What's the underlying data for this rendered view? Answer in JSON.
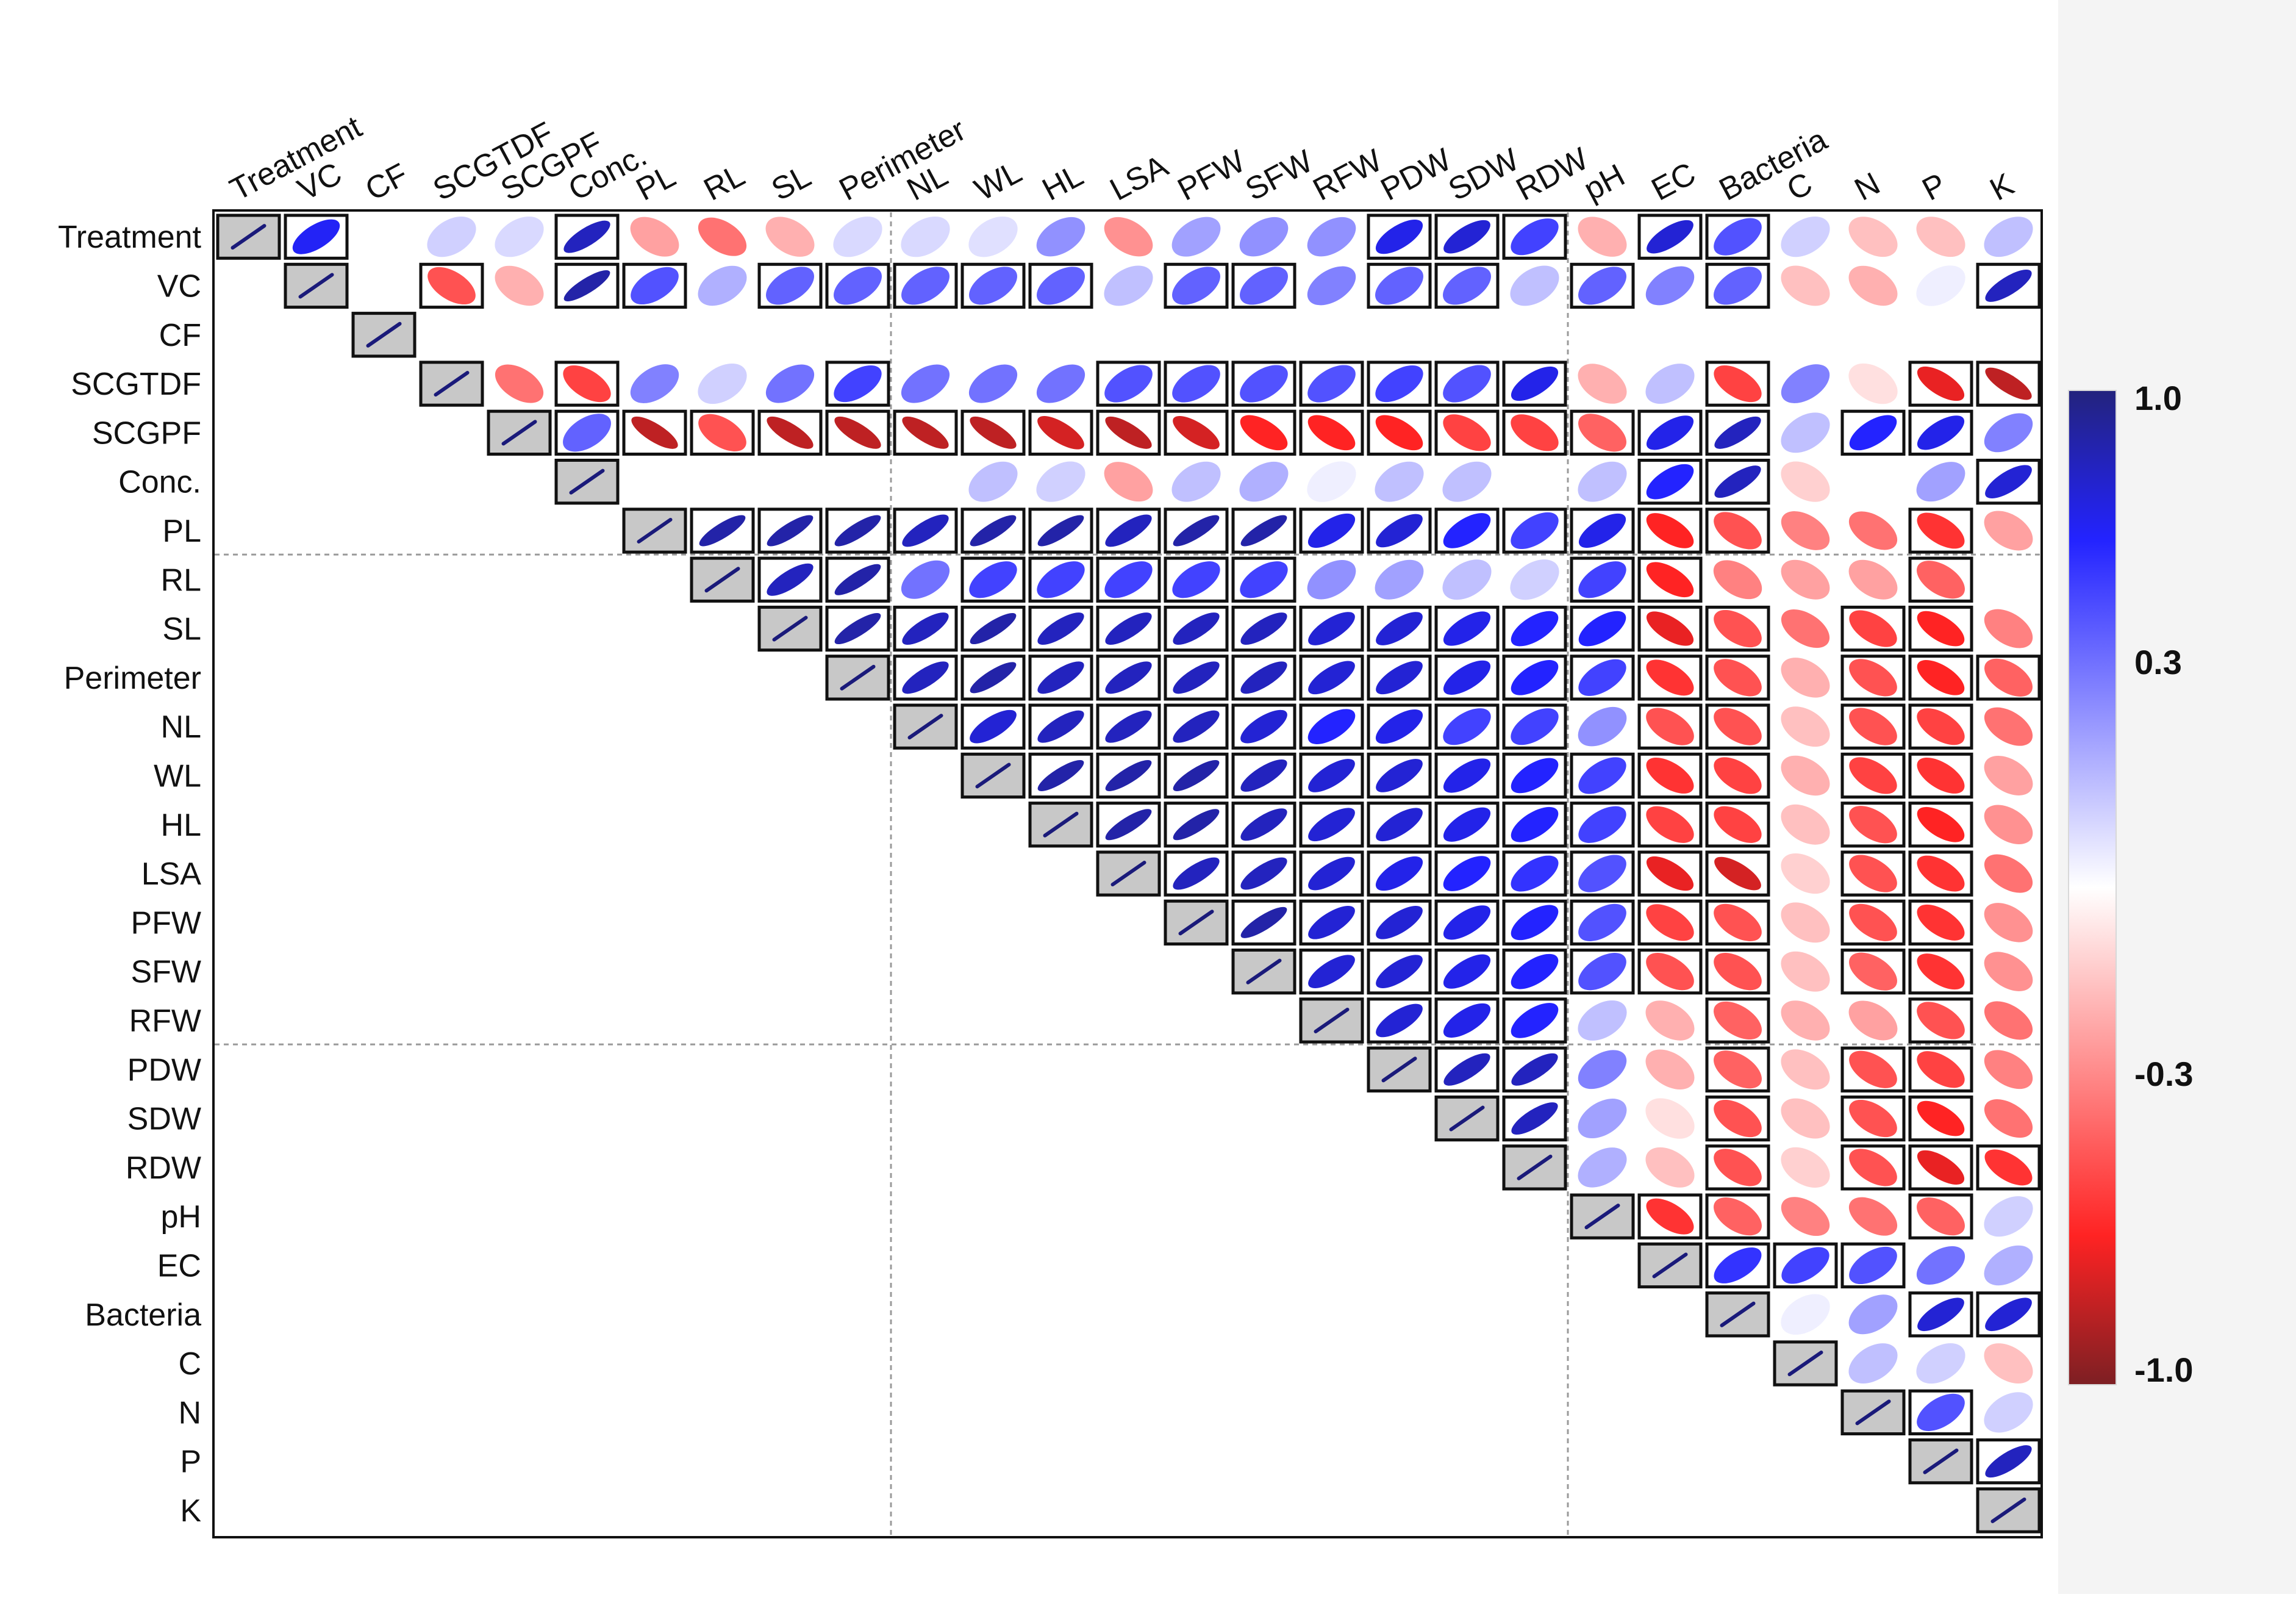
{
  "chart_data": {
    "type": "heatmap",
    "subtype": "correlation-matrix-upper-triangle-ellipses",
    "title": "",
    "variables": [
      "Treatment",
      "VC",
      "CF",
      "SCGTDF",
      "SCGPF",
      "Conc.",
      "PL",
      "RL",
      "SL",
      "Perimeter",
      "NL",
      "WL",
      "HL",
      "LSA",
      "PFW",
      "SFW",
      "RFW",
      "PDW",
      "SDW",
      "RDW",
      "pH",
      "EC",
      "Bacteria",
      "C",
      "N",
      "P",
      "K"
    ],
    "colorbar": {
      "range": [
        -1.0,
        1.0
      ],
      "ticks": [
        {
          "value": 1.0,
          "label": "1.0"
        },
        {
          "value": 0.3,
          "label": "0.3"
        },
        {
          "value": -0.3,
          "label": "-0.3"
        },
        {
          "value": -1.0,
          "label": "-1.0"
        }
      ],
      "colors": {
        "high": "#23237d",
        "mid_high": "#2323ff",
        "zero": "#ffffff",
        "mid_low": "#ff2323",
        "low": "#7d1f23"
      }
    },
    "significance": "black square outline marks significant correlations",
    "grid_lines_dashed": "between groups: after Conc./PL row, after RFW row; columns after Perimeter, after RDW",
    "correlations": [
      [
        1,
        0.72,
        0,
        0.15,
        0.12,
        0.85,
        -0.3,
        -0.45,
        -0.25,
        0.12,
        0.12,
        0.1,
        0.35,
        -0.35,
        0.3,
        0.35,
        0.35,
        0.75,
        0.8,
        0.6,
        -0.25,
        0.8,
        0.55,
        0.15,
        -0.2,
        -0.2,
        0.2
      ],
      [
        null,
        1,
        0,
        -0.55,
        -0.25,
        0.9,
        0.55,
        0.25,
        0.5,
        0.5,
        0.5,
        0.5,
        0.5,
        0.2,
        0.5,
        0.5,
        0.4,
        0.5,
        0.5,
        0.2,
        0.5,
        0.4,
        0.5,
        -0.2,
        -0.25,
        0.05,
        0.85
      ],
      [
        null,
        null,
        1,
        0,
        0,
        0,
        0,
        0,
        0,
        0,
        0,
        0,
        0,
        0,
        0,
        0,
        0,
        0,
        0,
        0,
        0,
        0,
        0,
        0,
        0,
        0,
        0
      ],
      [
        null,
        null,
        null,
        1,
        -0.45,
        -0.6,
        0.4,
        0.15,
        0.45,
        0.6,
        0.45,
        0.45,
        0.45,
        0.55,
        0.55,
        0.55,
        0.55,
        0.6,
        0.55,
        0.75,
        -0.25,
        0.2,
        -0.6,
        0.4,
        -0.1,
        -0.75,
        -0.85
      ],
      [
        null,
        null,
        null,
        null,
        1,
        0.5,
        -0.85,
        -0.55,
        -0.85,
        -0.85,
        -0.85,
        -0.85,
        -0.8,
        -0.85,
        -0.8,
        -0.7,
        -0.7,
        -0.7,
        -0.6,
        -0.6,
        -0.5,
        0.75,
        0.85,
        0.2,
        0.7,
        0.75,
        0.4
      ],
      [
        null,
        null,
        null,
        null,
        null,
        1,
        0,
        0,
        0,
        0,
        0,
        0.2,
        0.15,
        -0.3,
        0.2,
        0.25,
        0.05,
        0.2,
        0.2,
        0,
        0.2,
        0.7,
        0.85,
        -0.15,
        0,
        0.3,
        0.8
      ],
      [
        null,
        null,
        null,
        null,
        null,
        null,
        1,
        0.9,
        0.9,
        0.9,
        0.85,
        0.9,
        0.9,
        0.85,
        0.9,
        0.9,
        0.75,
        0.8,
        0.7,
        0.6,
        0.75,
        -0.7,
        -0.55,
        -0.4,
        -0.45,
        -0.65,
        -0.3
      ],
      [
        null,
        null,
        null,
        null,
        null,
        null,
        null,
        1,
        0.85,
        0.9,
        0.45,
        0.6,
        0.6,
        0.6,
        0.6,
        0.6,
        0.35,
        0.3,
        0.2,
        0.15,
        0.6,
        -0.7,
        -0.4,
        -0.3,
        -0.3,
        -0.5,
        0
      ],
      [
        null,
        null,
        null,
        null,
        null,
        null,
        null,
        null,
        1,
        0.9,
        0.85,
        0.9,
        0.85,
        0.85,
        0.85,
        0.85,
        0.8,
        0.8,
        0.75,
        0.7,
        0.7,
        -0.75,
        -0.55,
        -0.45,
        -0.6,
        -0.7,
        -0.4
      ],
      [
        null,
        null,
        null,
        null,
        null,
        null,
        null,
        null,
        null,
        1,
        0.85,
        0.9,
        0.85,
        0.85,
        0.85,
        0.85,
        0.8,
        0.8,
        0.75,
        0.7,
        0.6,
        -0.65,
        -0.55,
        -0.25,
        -0.55,
        -0.7,
        -0.5
      ],
      [
        null,
        null,
        null,
        null,
        null,
        null,
        null,
        null,
        null,
        null,
        1,
        0.8,
        0.85,
        0.85,
        0.85,
        0.8,
        0.7,
        0.75,
        0.6,
        0.6,
        0.35,
        -0.55,
        -0.55,
        -0.2,
        -0.55,
        -0.6,
        -0.45
      ],
      [
        null,
        null,
        null,
        null,
        null,
        null,
        null,
        null,
        null,
        null,
        null,
        1,
        0.9,
        0.9,
        0.9,
        0.85,
        0.8,
        0.8,
        0.75,
        0.7,
        0.6,
        -0.65,
        -0.6,
        -0.25,
        -0.6,
        -0.65,
        -0.3
      ],
      [
        null,
        null,
        null,
        null,
        null,
        null,
        null,
        null,
        null,
        null,
        null,
        null,
        1,
        0.9,
        0.9,
        0.85,
        0.8,
        0.8,
        0.75,
        0.7,
        0.6,
        -0.6,
        -0.6,
        -0.2,
        -0.55,
        -0.7,
        -0.35
      ],
      [
        null,
        null,
        null,
        null,
        null,
        null,
        null,
        null,
        null,
        null,
        null,
        null,
        null,
        1,
        0.85,
        0.85,
        0.8,
        0.75,
        0.7,
        0.65,
        0.55,
        -0.75,
        -0.8,
        -0.15,
        -0.55,
        -0.65,
        -0.45
      ],
      [
        null,
        null,
        null,
        null,
        null,
        null,
        null,
        null,
        null,
        null,
        null,
        null,
        null,
        null,
        1,
        0.9,
        0.8,
        0.8,
        0.75,
        0.7,
        0.55,
        -0.6,
        -0.55,
        -0.2,
        -0.55,
        -0.65,
        -0.35
      ],
      [
        null,
        null,
        null,
        null,
        null,
        null,
        null,
        null,
        null,
        null,
        null,
        null,
        null,
        null,
        null,
        1,
        0.8,
        0.8,
        0.75,
        0.7,
        0.55,
        -0.55,
        -0.55,
        -0.2,
        -0.5,
        -0.65,
        -0.35
      ],
      [
        null,
        null,
        null,
        null,
        null,
        null,
        null,
        null,
        null,
        null,
        null,
        null,
        null,
        null,
        null,
        null,
        1,
        0.8,
        0.75,
        0.7,
        0.2,
        -0.25,
        -0.5,
        -0.25,
        -0.3,
        -0.55,
        -0.45
      ],
      [
        null,
        null,
        null,
        null,
        null,
        null,
        null,
        null,
        null,
        null,
        null,
        null,
        null,
        null,
        null,
        null,
        null,
        1,
        0.85,
        0.85,
        0.4,
        -0.25,
        -0.5,
        -0.2,
        -0.55,
        -0.6,
        -0.4
      ],
      [
        null,
        null,
        null,
        null,
        null,
        null,
        null,
        null,
        null,
        null,
        null,
        null,
        null,
        null,
        null,
        null,
        null,
        null,
        1,
        0.85,
        0.3,
        -0.1,
        -0.55,
        -0.2,
        -0.55,
        -0.7,
        -0.45
      ],
      [
        null,
        null,
        null,
        null,
        null,
        null,
        null,
        null,
        null,
        null,
        null,
        null,
        null,
        null,
        null,
        null,
        null,
        null,
        null,
        1,
        0.25,
        -0.2,
        -0.55,
        -0.15,
        -0.55,
        -0.75,
        -0.65
      ],
      [
        null,
        null,
        null,
        null,
        null,
        null,
        null,
        null,
        null,
        null,
        null,
        null,
        null,
        null,
        null,
        null,
        null,
        null,
        null,
        null,
        1,
        -0.65,
        -0.5,
        -0.4,
        -0.45,
        -0.5,
        0.15
      ],
      [
        null,
        null,
        null,
        null,
        null,
        null,
        null,
        null,
        null,
        null,
        null,
        null,
        null,
        null,
        null,
        null,
        null,
        null,
        null,
        null,
        null,
        1,
        0.65,
        0.6,
        0.55,
        0.45,
        0.25
      ],
      [
        null,
        null,
        null,
        null,
        null,
        null,
        null,
        null,
        null,
        null,
        null,
        null,
        null,
        null,
        null,
        null,
        null,
        null,
        null,
        null,
        null,
        null,
        1,
        0.05,
        0.3,
        0.8,
        0.8
      ],
      [
        null,
        null,
        null,
        null,
        null,
        null,
        null,
        null,
        null,
        null,
        null,
        null,
        null,
        null,
        null,
        null,
        null,
        null,
        null,
        null,
        null,
        null,
        null,
        1,
        0.2,
        0.15,
        -0.2
      ],
      [
        null,
        null,
        null,
        null,
        null,
        null,
        null,
        null,
        null,
        null,
        null,
        null,
        null,
        null,
        null,
        null,
        null,
        null,
        null,
        null,
        null,
        null,
        null,
        null,
        1,
        0.55,
        0.15
      ],
      [
        null,
        null,
        null,
        null,
        null,
        null,
        null,
        null,
        null,
        null,
        null,
        null,
        null,
        null,
        null,
        null,
        null,
        null,
        null,
        null,
        null,
        null,
        null,
        null,
        null,
        1,
        0.85
      ],
      [
        null,
        null,
        null,
        null,
        null,
        null,
        null,
        null,
        null,
        null,
        null,
        null,
        null,
        null,
        null,
        null,
        null,
        null,
        null,
        null,
        null,
        null,
        null,
        null,
        null,
        null,
        1
      ]
    ]
  }
}
